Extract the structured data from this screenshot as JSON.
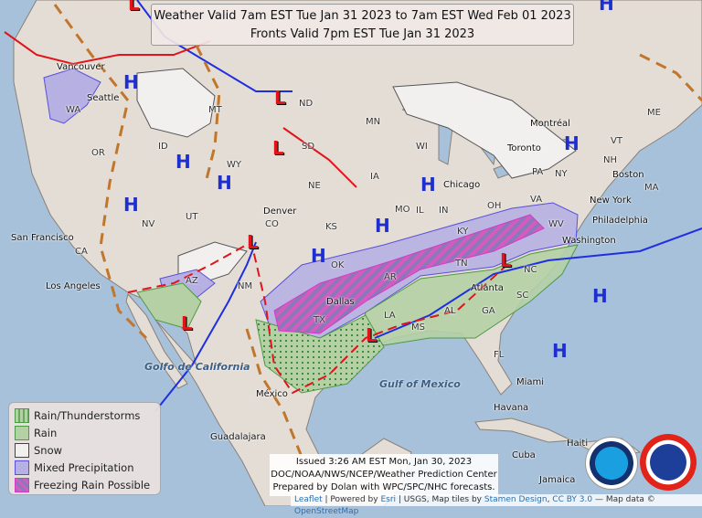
{
  "title": {
    "line1": "Weather Valid 7am EST Tue Jan 31 2023 to 7am EST Wed Feb 01 2023",
    "line2": "Fronts Valid 7pm EST Tue Jan 31 2023"
  },
  "legend": {
    "items": [
      {
        "label": "Rain/Thunderstorms",
        "fill": "#a9c79a",
        "border": "#4d9a45"
      },
      {
        "label": "Rain",
        "fill": "#b5d0a5",
        "border": "#4d9a45"
      },
      {
        "label": "Snow",
        "fill": "#f2f0ee",
        "border": "#444444"
      },
      {
        "label": "Mixed Precipitation",
        "fill": "#b6b0e3",
        "border": "#5a4fd8"
      },
      {
        "label": "Freezing Rain Possible",
        "fill": "#8a78b8",
        "border": "#d63bc7"
      }
    ]
  },
  "issued": {
    "line1": "Issued 3:26 AM EST Mon, Jan 30, 2023",
    "line2": "DOC/NOAA/NWS/NCEP/Weather Prediction Center",
    "line3": "Prepared by Dolan with WPC/SPC/NHC forecasts."
  },
  "attribution": {
    "leaflet": "Leaflet",
    "sep1": " | Powered by ",
    "esri": "Esri",
    "sep2": " | USGS, Map tiles by ",
    "stamen": "Stamen Design",
    "sep3": ", ",
    "cc": "CC BY 3.0",
    "sep4": " — Map data © ",
    "osm": "OpenStreetMap"
  },
  "logos": {
    "noaa": "NOAA",
    "nws": "NATIONAL WEATHER SERVICE"
  },
  "highs": [
    "H",
    "H",
    "H",
    "H",
    "H",
    "H",
    "H",
    "H",
    "H",
    "H",
    "H"
  ],
  "lows": [
    "L",
    "L",
    "L",
    "L",
    "L",
    "L",
    "L"
  ],
  "states": [
    "WA",
    "OR",
    "CA",
    "ID",
    "MT",
    "WY",
    "NV",
    "UT",
    "AZ",
    "CO",
    "NM",
    "ND",
    "SD",
    "NE",
    "KS",
    "OK",
    "TX",
    "MN",
    "IA",
    "MO",
    "AR",
    "LA",
    "MS",
    "AL",
    "GA",
    "FL",
    "SC",
    "NC",
    "TN",
    "KY",
    "IL",
    "WI",
    "IN",
    "OH",
    "WV",
    "VA",
    "PA",
    "NY",
    "VT",
    "NH",
    "ME",
    "MA"
  ],
  "cities": [
    "Vancouver",
    "Seattle",
    "San Francisco",
    "Los Angeles",
    "Denver",
    "Dallas",
    "Chicago",
    "Atlanta",
    "Philadelphia",
    "New York",
    "Washington",
    "Boston",
    "Toronto",
    "Montréal",
    "Miami",
    "Havana",
    "Guadalajara",
    "México",
    "Jamaica",
    "Cuba",
    "Haiti"
  ],
  "seas": [
    "Golfo de California",
    "Gulf of Mexico"
  ]
}
